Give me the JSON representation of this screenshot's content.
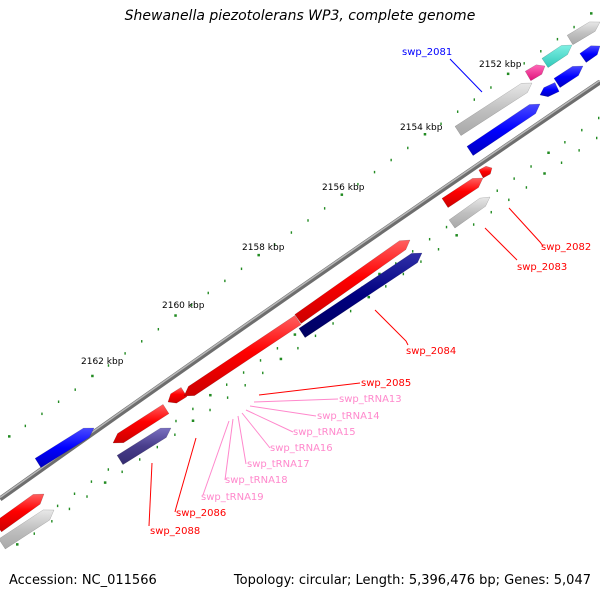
{
  "title": "Shewanella piezotolerans WP3, complete genome",
  "footer": {
    "accession": "Accession: NC_011566",
    "topology": "Topology: circular; Length: 5,396,476 bp; Genes: 5,047"
  },
  "ruler_labels": [
    "2152 kbp",
    "2154 kbp",
    "2156 kbp",
    "2158 kbp",
    "2160 kbp",
    "2162 kbp"
  ],
  "colors": {
    "red": "#ff0000",
    "gray": "#c0c0c0",
    "blue": "#0000ff",
    "navy": "#000080",
    "slate": "#483d8b",
    "magenta": "#ff1493",
    "cyan": "#40e0d0",
    "tick": "#228b22",
    "backbone": "#808080",
    "label_blue": "#0000ff",
    "label_red": "#ff0000",
    "label_pink": "#ff88cc"
  },
  "gene_labels": [
    {
      "id": "swp_2081",
      "color": "blue"
    },
    {
      "id": "swp_2082",
      "color": "red"
    },
    {
      "id": "swp_2083",
      "color": "red"
    },
    {
      "id": "swp_2084",
      "color": "red"
    },
    {
      "id": "swp_2085",
      "color": "red"
    },
    {
      "id": "swp_tRNA13",
      "color": "pink"
    },
    {
      "id": "swp_tRNA14",
      "color": "pink"
    },
    {
      "id": "swp_tRNA15",
      "color": "pink"
    },
    {
      "id": "swp_tRNA16",
      "color": "pink"
    },
    {
      "id": "swp_tRNA17",
      "color": "pink"
    },
    {
      "id": "swp_tRNA18",
      "color": "pink"
    },
    {
      "id": "swp_tRNA19",
      "color": "pink"
    },
    {
      "id": "swp_2086",
      "color": "red"
    },
    {
      "id": "swp_2088",
      "color": "red"
    }
  ]
}
